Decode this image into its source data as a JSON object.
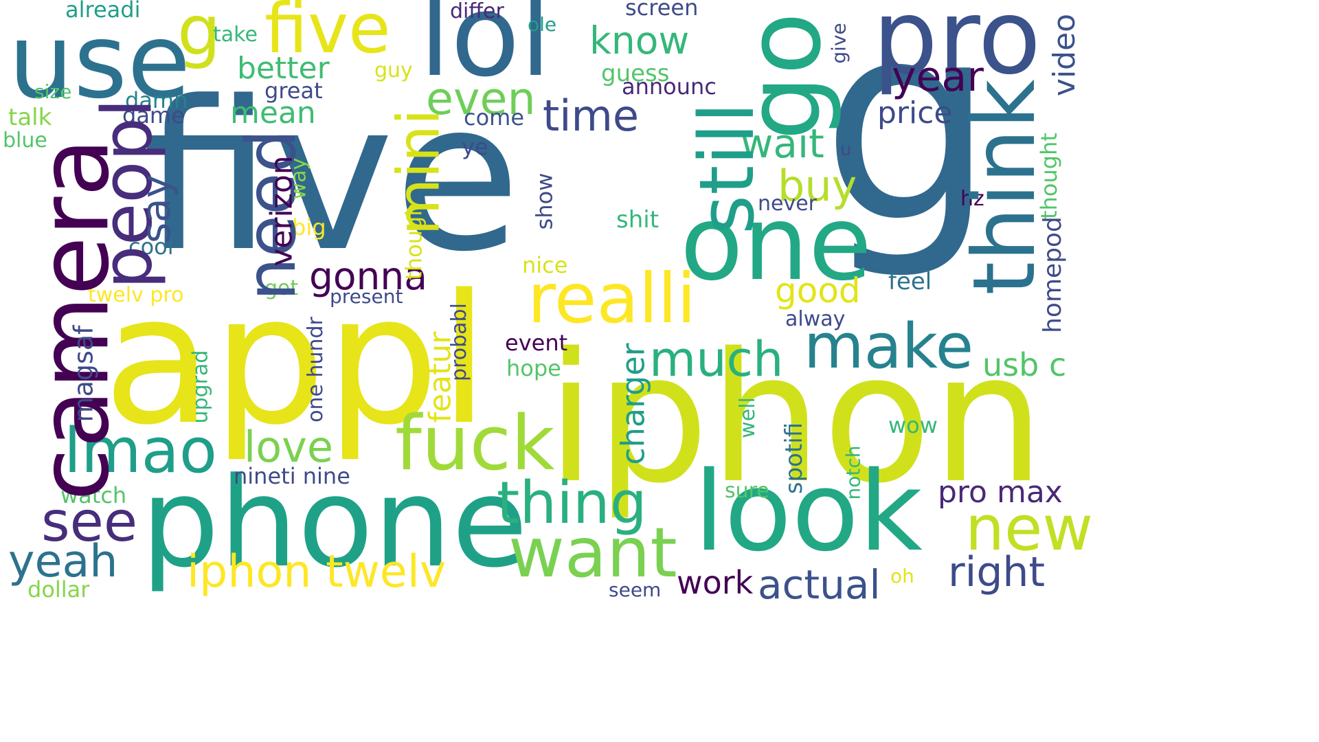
{
  "palette": {
    "dark_purple": "#440154",
    "indigo": "#3e4a89",
    "blue": "#31688e",
    "teal": "#26828e",
    "green_teal": "#1f9e89",
    "green": "#35b779",
    "light_green": "#6ece58",
    "lime": "#b5de2b",
    "yellow": "#e7e419",
    "bright_yellow": "#fde725"
  },
  "words": {
    "five": "five",
    "g": "g",
    "appl": "appl",
    "iphon": "iphon",
    "phone": "phone",
    "camera": "camera",
    "look": "look",
    "one": "one",
    "think": "think",
    "lol": "lol",
    "use": "use",
    "five_small": "five",
    "go": "go",
    "pro": "pro",
    "still": "still",
    "peopl": "peopl",
    "need": "need",
    "mini": "mini",
    "realli": "realli",
    "fuck": "fuck",
    "make": "make",
    "want": "want",
    "new": "new",
    "lmao": "lmao",
    "thing": "thing",
    "see": "see",
    "yeah": "yeah",
    "iphon_twelv": "iphon twelv",
    "right": "right",
    "actual": "actual",
    "much": "much",
    "love": "love",
    "even": "even",
    "time": "time",
    "wait": "wait",
    "buy": "buy",
    "year": "year",
    "know": "know",
    "better": "better",
    "mean": "mean",
    "price": "price",
    "video": "video",
    "say": "say",
    "gonna": "gonna",
    "good": "good",
    "usb_c": "usb c",
    "pro_max": "pro max",
    "verizon": "verizon",
    "charger": "charger",
    "featur": "featur",
    "work": "work",
    "g_small": "g",
    "homepod": "homepod",
    "thought": "thought",
    "alreadi": "alreadi",
    "differ": "differ",
    "screen": "screen",
    "ole": "ole",
    "take": "take",
    "give": "give",
    "guess": "guess",
    "announc": "announc",
    "great": "great",
    "guy": "guy",
    "damn": "damn",
    "game": "game",
    "size": "size",
    "talk": "talk",
    "blue": "blue",
    "come": "come",
    "ye": "ye",
    "u": "u",
    "way": "way",
    "show": "show",
    "never": "never",
    "hz": "hz",
    "shit": "shit",
    "cool": "cool",
    "big": "big",
    "though": "though",
    "nice": "nice",
    "feel": "feel",
    "twelv_pro": "twelv pro",
    "got": "got",
    "present": "present",
    "alway": "alway",
    "event": "event",
    "probabl": "probabl",
    "hope": "hope",
    "magsaf": "magsaf",
    "one_hundr": "one hundr",
    "upgrad": "upgrad",
    "well": "well",
    "spotifi": "spotifi",
    "wow": "wow",
    "notch": "notch",
    "nineti_nine": "nineti nine",
    "watch": "watch",
    "sure": "sure",
    "oh": "oh",
    "seem": "seem",
    "dollar": "dollar"
  }
}
